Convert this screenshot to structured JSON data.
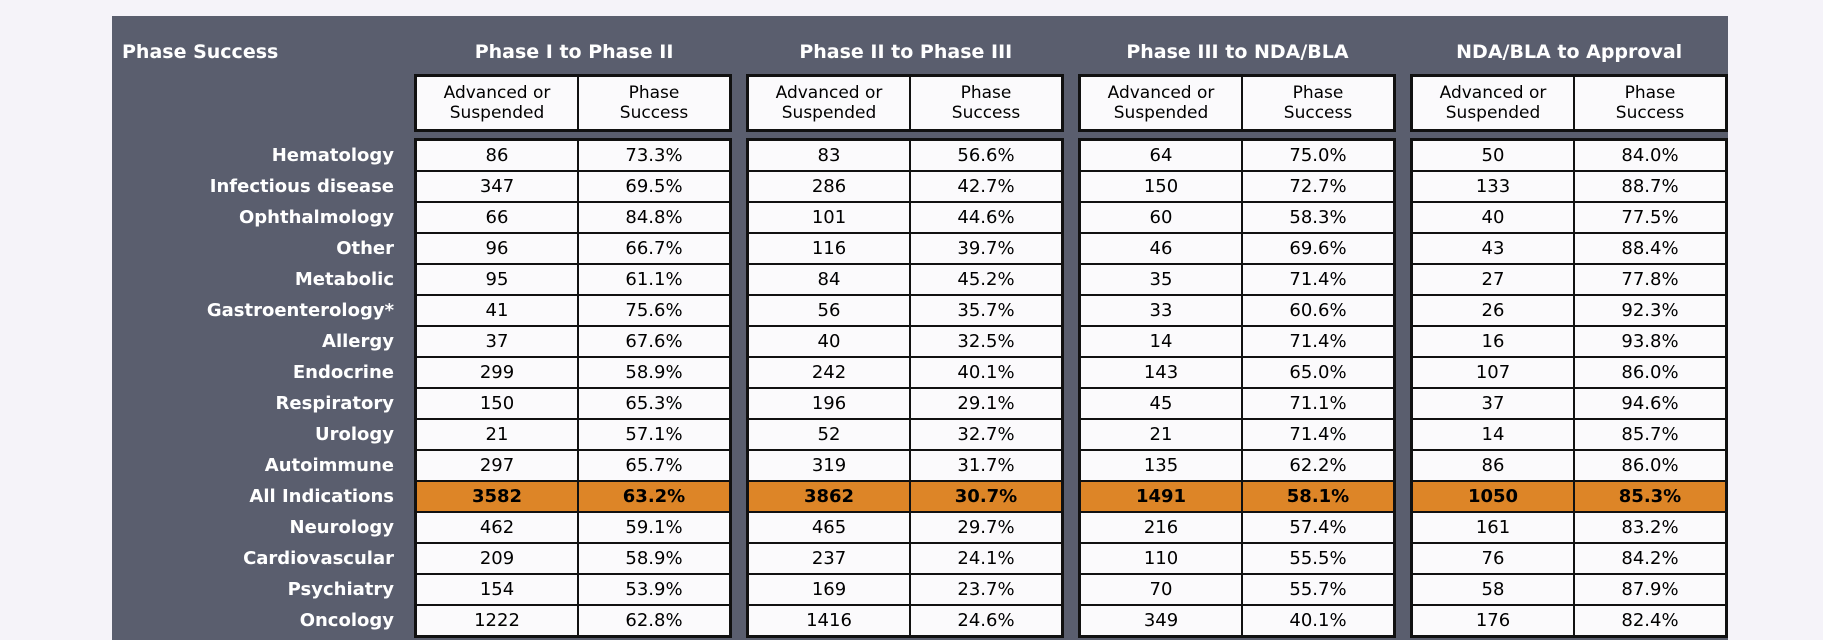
{
  "chart_data": {
    "type": "table",
    "title": "Phase Success",
    "column_groups": [
      "Phase I to Phase II",
      "Phase II to Phase III",
      "Phase III to NDA/BLA",
      "NDA/BLA to Approval"
    ],
    "sub_columns": [
      "Advanced or Suspended",
      "Phase Success"
    ],
    "rows": [
      {
        "label": "Hematology",
        "highlight": false,
        "values": [
          "86",
          "73.3%",
          "83",
          "56.6%",
          "64",
          "75.0%",
          "50",
          "84.0%"
        ]
      },
      {
        "label": "Infectious disease",
        "highlight": false,
        "values": [
          "347",
          "69.5%",
          "286",
          "42.7%",
          "150",
          "72.7%",
          "133",
          "88.7%"
        ]
      },
      {
        "label": "Ophthalmology",
        "highlight": false,
        "values": [
          "66",
          "84.8%",
          "101",
          "44.6%",
          "60",
          "58.3%",
          "40",
          "77.5%"
        ]
      },
      {
        "label": "Other",
        "highlight": false,
        "values": [
          "96",
          "66.7%",
          "116",
          "39.7%",
          "46",
          "69.6%",
          "43",
          "88.4%"
        ]
      },
      {
        "label": "Metabolic",
        "highlight": false,
        "values": [
          "95",
          "61.1%",
          "84",
          "45.2%",
          "35",
          "71.4%",
          "27",
          "77.8%"
        ]
      },
      {
        "label": "Gastroenterology*",
        "highlight": false,
        "values": [
          "41",
          "75.6%",
          "56",
          "35.7%",
          "33",
          "60.6%",
          "26",
          "92.3%"
        ]
      },
      {
        "label": "Allergy",
        "highlight": false,
        "values": [
          "37",
          "67.6%",
          "40",
          "32.5%",
          "14",
          "71.4%",
          "16",
          "93.8%"
        ]
      },
      {
        "label": "Endocrine",
        "highlight": false,
        "values": [
          "299",
          "58.9%",
          "242",
          "40.1%",
          "143",
          "65.0%",
          "107",
          "86.0%"
        ]
      },
      {
        "label": "Respiratory",
        "highlight": false,
        "values": [
          "150",
          "65.3%",
          "196",
          "29.1%",
          "45",
          "71.1%",
          "37",
          "94.6%"
        ]
      },
      {
        "label": "Urology",
        "highlight": false,
        "values": [
          "21",
          "57.1%",
          "52",
          "32.7%",
          "21",
          "71.4%",
          "14",
          "85.7%"
        ]
      },
      {
        "label": "Autoimmune",
        "highlight": false,
        "values": [
          "297",
          "65.7%",
          "319",
          "31.7%",
          "135",
          "62.2%",
          "86",
          "86.0%"
        ]
      },
      {
        "label": "All Indications",
        "highlight": true,
        "values": [
          "3582",
          "63.2%",
          "3862",
          "30.7%",
          "1491",
          "58.1%",
          "1050",
          "85.3%"
        ]
      },
      {
        "label": "Neurology",
        "highlight": false,
        "values": [
          "462",
          "59.1%",
          "465",
          "29.7%",
          "216",
          "57.4%",
          "161",
          "83.2%"
        ]
      },
      {
        "label": "Cardiovascular",
        "highlight": false,
        "values": [
          "209",
          "58.9%",
          "237",
          "24.1%",
          "110",
          "55.5%",
          "76",
          "84.2%"
        ]
      },
      {
        "label": "Psychiatry",
        "highlight": false,
        "values": [
          "154",
          "53.9%",
          "169",
          "23.7%",
          "70",
          "55.7%",
          "58",
          "87.9%"
        ]
      },
      {
        "label": "Oncology",
        "highlight": false,
        "values": [
          "1222",
          "62.8%",
          "1416",
          "24.6%",
          "349",
          "40.1%",
          "176",
          "82.4%"
        ]
      }
    ],
    "colors": {
      "page_background": "#f5f3f9",
      "panel_background": "#5a5e6e",
      "cell_background": "#fbfafc",
      "gridline": "#111111",
      "highlight_row": "#dd8527",
      "header_text": "#ffffff",
      "cell_text": "#000000"
    },
    "layout": {
      "highlighted_row_label": "All Indications",
      "grid": "on",
      "row_label_alignment": "right",
      "value_alignment": "center"
    }
  }
}
